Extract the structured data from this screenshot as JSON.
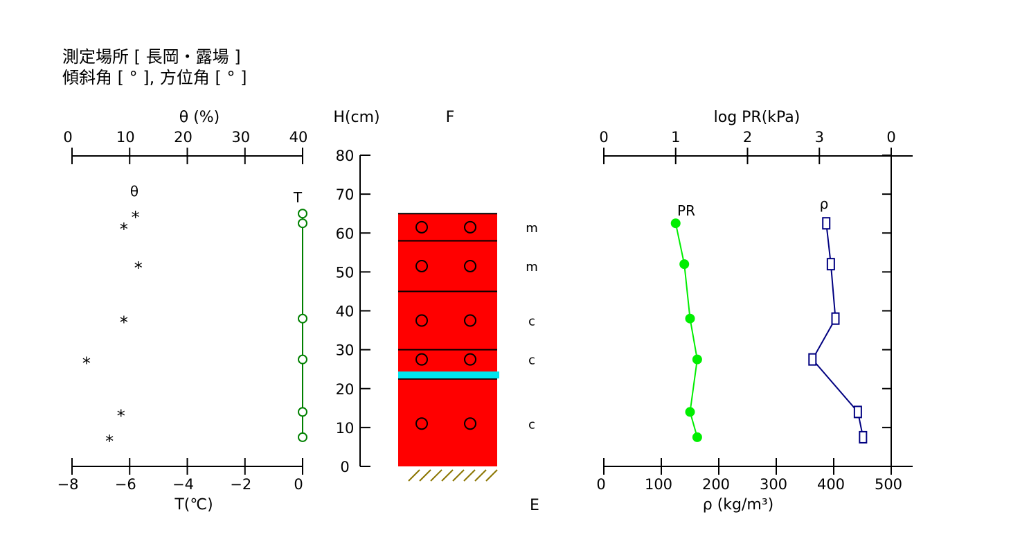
{
  "header": {
    "line1": "測定場所 [ 長岡・露場 ]",
    "line2": "傾斜角 [ ° ], 方位角 [ ° ]"
  },
  "colors": {
    "temperature": "#008000",
    "pr": "#00ee00",
    "density": "#000080",
    "snow_layer": "#ff0000",
    "ice_layer": "#00e5ee",
    "ground_hatch": "#8b7500"
  },
  "chart_data": [
    {
      "type": "scatter",
      "name_label": "θ",
      "top_axis_label": "θ (%)",
      "top_ticks": [
        "0",
        "10",
        "20",
        "30",
        "40"
      ],
      "xlim": [
        0,
        40
      ],
      "marker": "*",
      "points": [
        {
          "x": 11,
          "y": 65
        },
        {
          "x": 9,
          "y": 62
        },
        {
          "x": 11.5,
          "y": 52
        },
        {
          "x": 9,
          "y": 38
        },
        {
          "x": 2.5,
          "y": 27.5
        },
        {
          "x": 8.5,
          "y": 14
        },
        {
          "x": 6.5,
          "y": 7.5
        }
      ]
    },
    {
      "type": "line",
      "series_label": "T",
      "xlabel": "T(℃)",
      "bottom_ticks": [
        "−8",
        "−6",
        "−4",
        "−2",
        "0"
      ],
      "xlim": [
        -8,
        0
      ],
      "points": [
        {
          "x": 0,
          "y": 65
        },
        {
          "x": 0,
          "y": 62.5
        },
        {
          "x": 0,
          "y": 38
        },
        {
          "x": 0,
          "y": 27.5
        },
        {
          "x": 0,
          "y": 14
        },
        {
          "x": 0,
          "y": 7.5
        }
      ]
    },
    {
      "type": "table",
      "ylabel": "H(cm)",
      "column_label": "F",
      "bottom_label": "E",
      "y_ticks": [
        "0",
        "10",
        "20",
        "30",
        "40",
        "50",
        "60",
        "70",
        "80"
      ],
      "ylim": [
        0,
        80
      ],
      "snow_height": 65,
      "layer_boundaries": [
        58,
        45,
        30,
        22.5
      ],
      "ice_layer_height": 23.5,
      "layers": [
        {
          "top": 65,
          "bottom": 58,
          "center": 61.5,
          "grain": "m"
        },
        {
          "top": 58,
          "bottom": 45,
          "center": 51.5,
          "grain": "m"
        },
        {
          "top": 45,
          "bottom": 30,
          "center": 37.5,
          "grain": "c"
        },
        {
          "top": 30,
          "bottom": 22.5,
          "center": 27.5,
          "grain": "c"
        },
        {
          "top": 22.5,
          "bottom": 0,
          "center": 11,
          "grain": "c"
        }
      ]
    },
    {
      "type": "line",
      "series_label": "PR",
      "top_axis_label": "log PR(kPa)",
      "top_ticks": [
        "0",
        "1",
        "2",
        "3",
        "0"
      ],
      "xlim": [
        0,
        4
      ],
      "points": [
        {
          "x": 1.0,
          "y": 62.5
        },
        {
          "x": 1.12,
          "y": 52
        },
        {
          "x": 1.2,
          "y": 38
        },
        {
          "x": 1.3,
          "y": 27.5
        },
        {
          "x": 1.2,
          "y": 14
        },
        {
          "x": 1.3,
          "y": 7.5
        }
      ]
    },
    {
      "type": "line",
      "series_label": "ρ",
      "xlabel": "ρ (kg/m³)",
      "bottom_ticks": [
        "0",
        "100",
        "200",
        "300",
        "400",
        "500"
      ],
      "xlim": [
        0,
        500
      ],
      "points": [
        {
          "x": 387,
          "y": 62.5
        },
        {
          "x": 395,
          "y": 52
        },
        {
          "x": 403,
          "y": 38
        },
        {
          "x": 363,
          "y": 27.5
        },
        {
          "x": 442,
          "y": 14
        },
        {
          "x": 451,
          "y": 7.5
        }
      ]
    }
  ]
}
